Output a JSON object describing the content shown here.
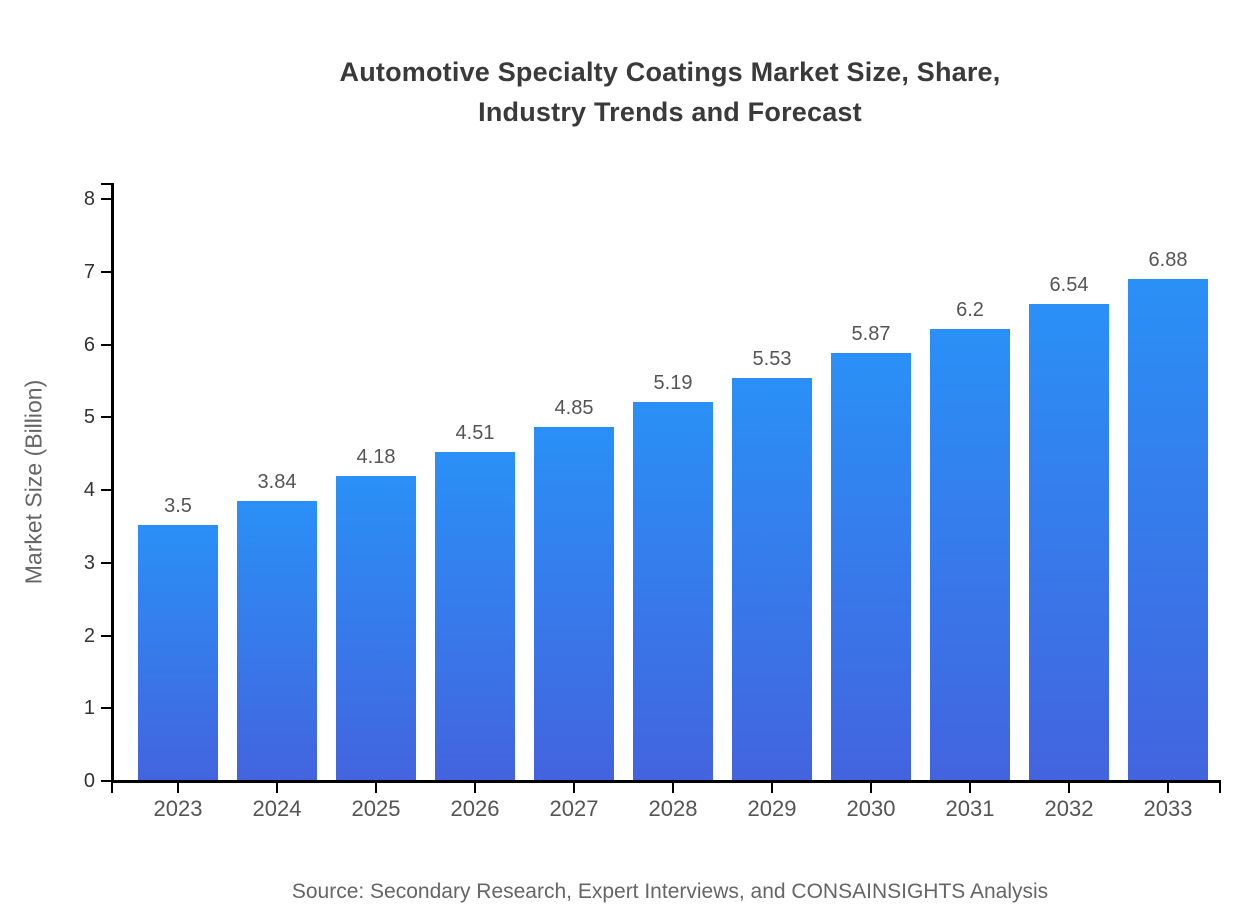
{
  "title": {
    "line1": "Automotive Specialty Coatings Market Size, Share,",
    "line2": "Industry Trends and Forecast"
  },
  "source": "Source: Secondary Research, Expert Interviews, and CONSAINSIGHTS Analysis",
  "colors": {
    "background": "#ffffff",
    "bar_gradient_top": "#2A90F7",
    "bar_gradient_bottom": "#4364DE",
    "axis": "#000000",
    "title_text": "#3a3a3a",
    "ytick_text": "#333333",
    "xtick_text": "#555555",
    "value_label_text": "#555555",
    "ylabel_text": "#666666",
    "source_text": "#666666"
  },
  "chart_data": {
    "type": "bar",
    "title": "Automotive Specialty Coatings Market Size, Share, Industry Trends and Forecast",
    "categories": [
      "2023",
      "2024",
      "2025",
      "2026",
      "2027",
      "2028",
      "2029",
      "2030",
      "2031",
      "2032",
      "2033"
    ],
    "values": [
      3.5,
      3.84,
      4.18,
      4.51,
      4.85,
      5.19,
      5.53,
      5.87,
      6.2,
      6.54,
      6.88
    ],
    "value_labels": [
      "3.5",
      "3.84",
      "4.18",
      "4.51",
      "4.85",
      "5.19",
      "5.53",
      "5.87",
      "6.2",
      "6.54",
      "6.88"
    ],
    "xlabel": "",
    "ylabel": "Market Size (Billion)",
    "ylim": [
      0,
      8
    ],
    "yticks": [
      0,
      1,
      2,
      3,
      4,
      5,
      6,
      7,
      8
    ],
    "grid": false,
    "legend_position": "none",
    "bar_color_top": "#2A90F7",
    "bar_color_bottom": "#4364DE",
    "source": "Source: Secondary Research, Expert Interviews, and CONSAINSIGHTS Analysis"
  }
}
